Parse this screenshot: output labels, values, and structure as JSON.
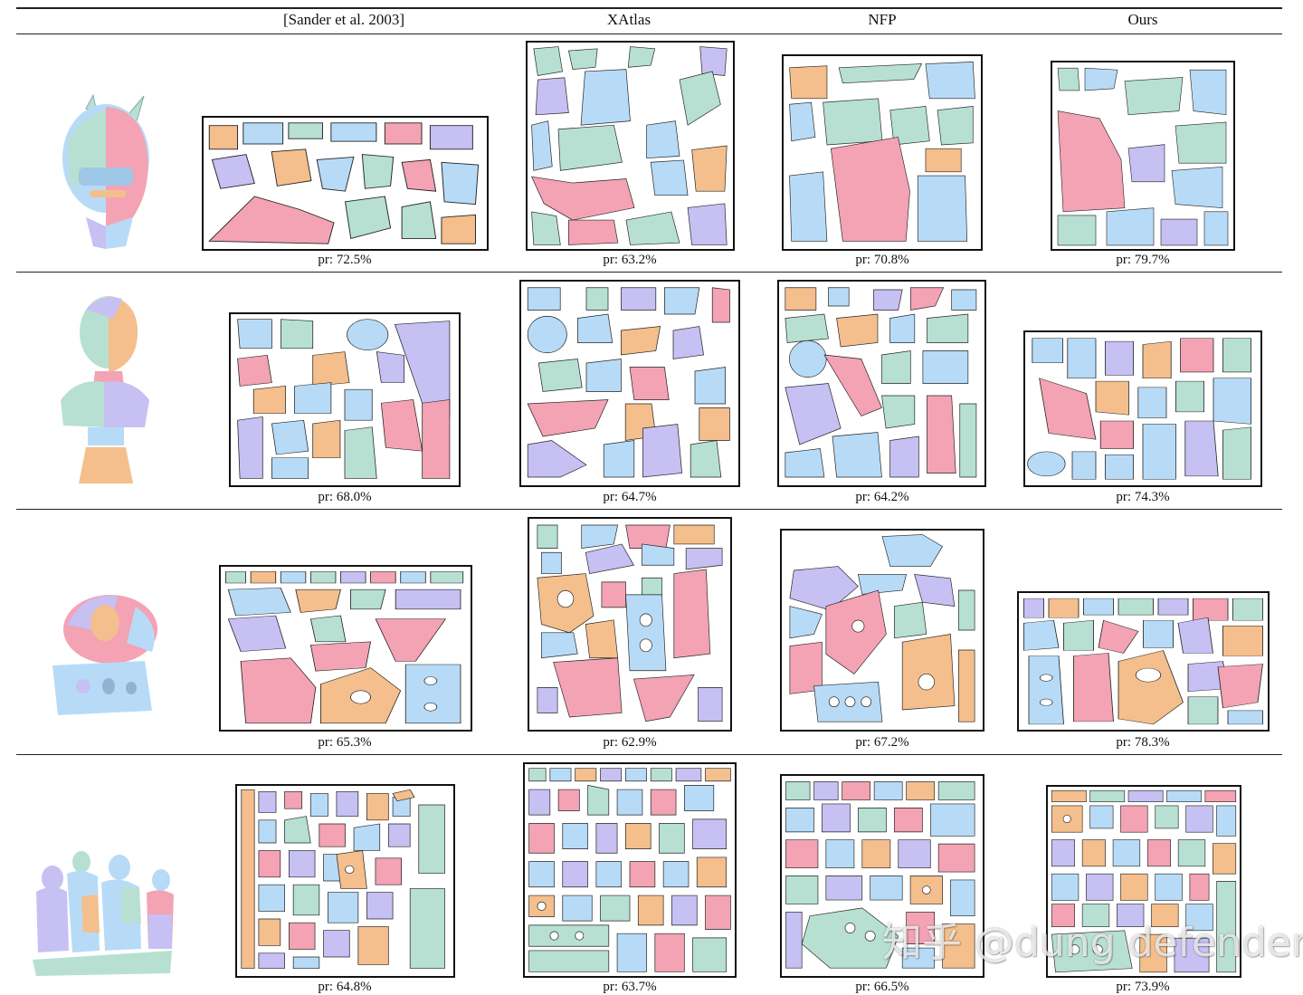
{
  "table": {
    "columns": [
      "[Sander et al. 2003]",
      "XAtlas",
      "NFP",
      "Ours"
    ],
    "rows": [
      {
        "model": "devil-head",
        "captions": [
          "pr: 72.5%",
          "pr: 63.2%",
          "pr: 70.8%",
          "pr: 79.7%"
        ]
      },
      {
        "model": "bust",
        "captions": [
          "pr: 68.0%",
          "pr: 64.7%",
          "pr: 64.2%",
          "pr: 74.3%"
        ]
      },
      {
        "model": "bunny-block",
        "captions": [
          "pr: 65.3%",
          "pr: 62.9%",
          "pr: 67.2%",
          "pr: 78.3%"
        ]
      },
      {
        "model": "group-statue",
        "captions": [
          "pr: 64.8%",
          "pr: 63.7%",
          "pr: 66.5%",
          "pr: 73.9%"
        ]
      }
    ]
  },
  "chart_palette": {
    "pink": "#f3a3b3",
    "blue": "#b7dbf7",
    "green": "#b7e0d2",
    "orange": "#f4bf8c",
    "purple": "#c6c0f3"
  },
  "watermark": "知乎 @dung defender"
}
